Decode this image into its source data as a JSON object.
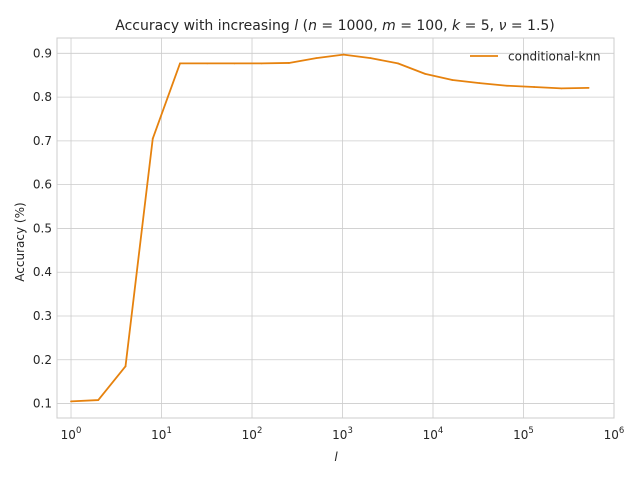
{
  "chart_data": {
    "type": "line",
    "title": "Accuracy with increasing l (n = 1000, m = 100, k = 5, ν = 1.5)",
    "title_parts": {
      "prefix": "Accuracy with increasing ",
      "var": "l",
      "params_open": " (",
      "n": "n",
      "n_val": " = 1000, ",
      "m": "m",
      "m_val": " = 100, ",
      "k": "k",
      "k_val": " = 5, ",
      "nu": "ν",
      "nu_val": " = 1.5)"
    },
    "xlabel": "l",
    "ylabel": "Accuracy (%)",
    "xscale": "log",
    "xlim": [
      0.7,
      1000000
    ],
    "ylim": [
      0.067,
      0.935
    ],
    "x_ticks": [
      {
        "value": 1,
        "base": "10",
        "exp": "0"
      },
      {
        "value": 10,
        "base": "10",
        "exp": "1"
      },
      {
        "value": 100,
        "base": "10",
        "exp": "2"
      },
      {
        "value": 1000,
        "base": "10",
        "exp": "3"
      },
      {
        "value": 10000,
        "base": "10",
        "exp": "4"
      },
      {
        "value": 100000,
        "base": "10",
        "exp": "5"
      },
      {
        "value": 1000000,
        "base": "10",
        "exp": "6"
      }
    ],
    "y_ticks": [
      "0.1",
      "0.2",
      "0.3",
      "0.4",
      "0.5",
      "0.6",
      "0.7",
      "0.8",
      "0.9"
    ],
    "grid": true,
    "legend_position": "top-right",
    "series": [
      {
        "name": "conditional-knn",
        "color": "#e6820e",
        "x": [
          1,
          2,
          4,
          8,
          16,
          32,
          64,
          128,
          256,
          512,
          1024,
          2048,
          4096,
          8192,
          16384,
          32768,
          65536,
          131072,
          262144,
          524288
        ],
        "y": [
          0.105,
          0.108,
          0.185,
          0.705,
          0.877,
          0.877,
          0.877,
          0.877,
          0.878,
          0.889,
          0.897,
          0.889,
          0.877,
          0.853,
          0.839,
          0.832,
          0.826,
          0.823,
          0.82,
          0.821
        ]
      }
    ]
  }
}
